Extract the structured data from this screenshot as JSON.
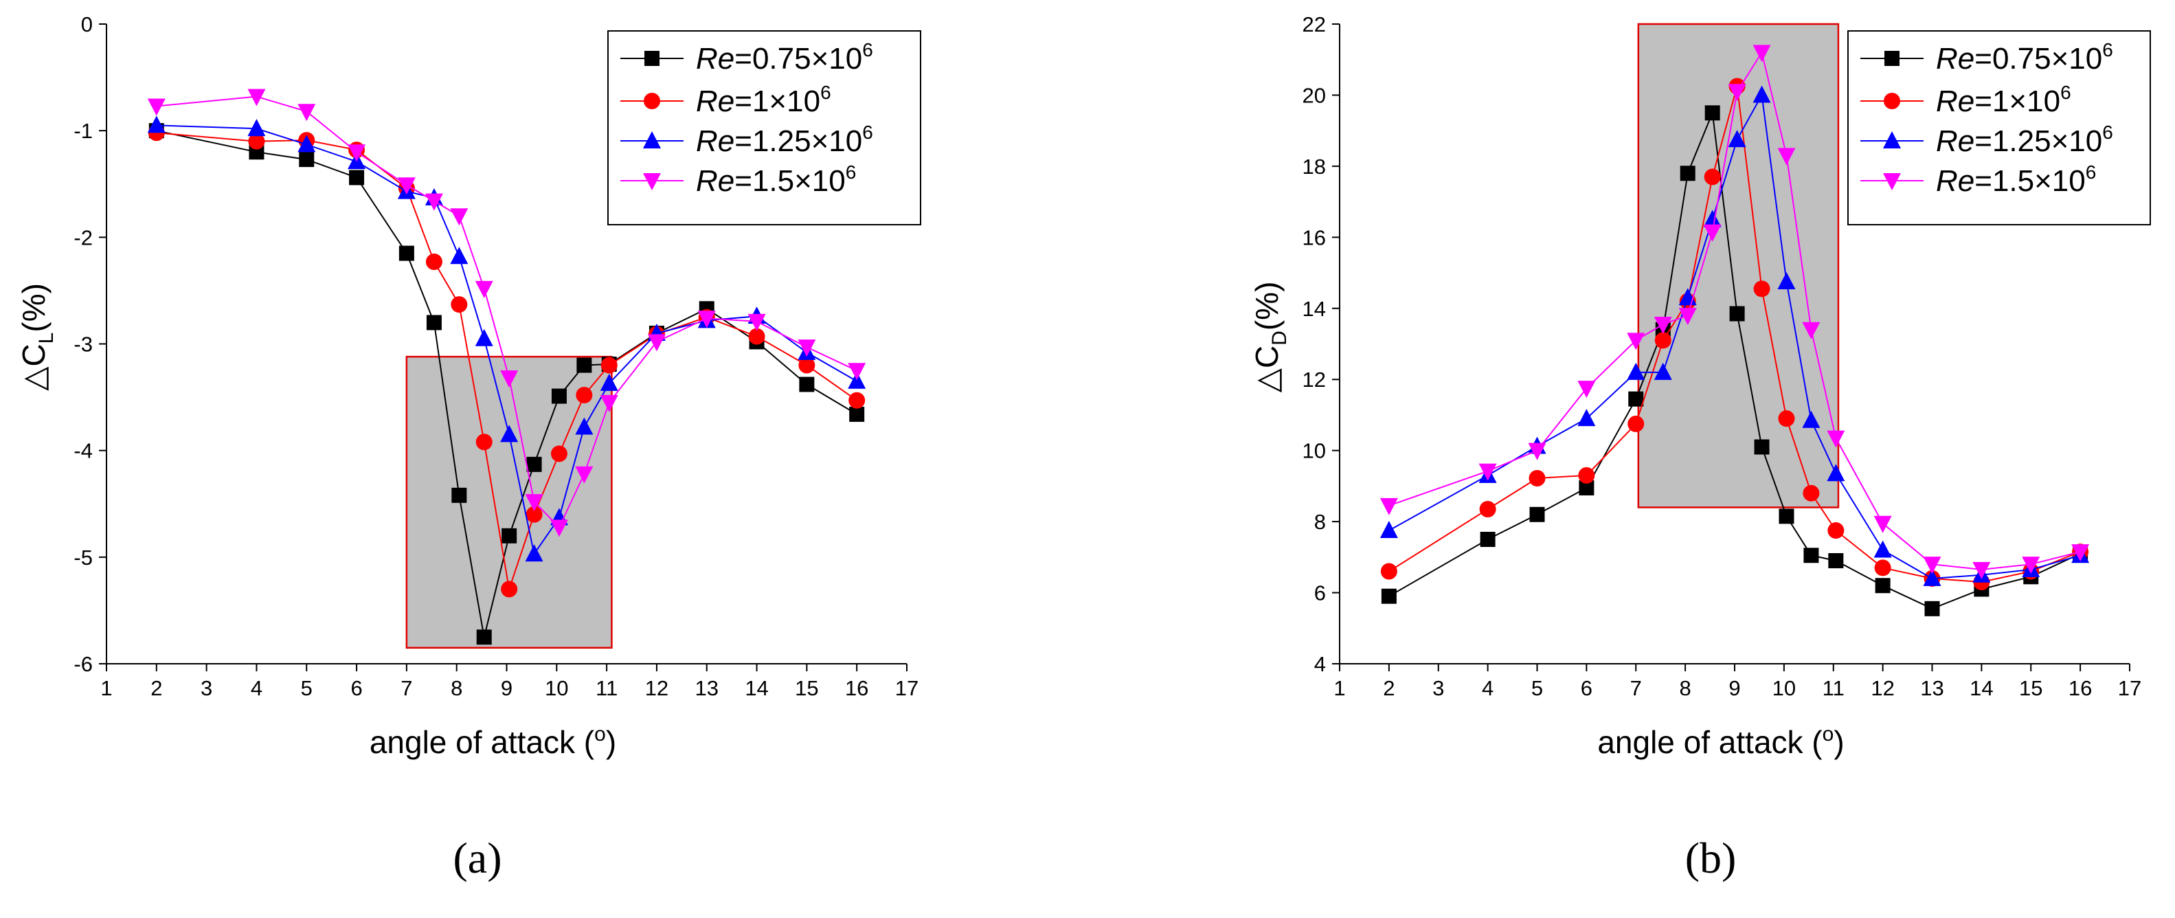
{
  "chart_data": [
    {
      "type": "line",
      "panel": "a",
      "caption": "(a)",
      "xlabel": "angle of attack (",
      "xlabel_sup": "o",
      "xlabel_close": ")",
      "ylabel": "△C",
      "ylabel_sub": "L",
      "ylabel_unit": "(%)",
      "xlim": [
        1,
        17
      ],
      "ylim": [
        -6,
        0
      ],
      "xticks": [
        1,
        2,
        3,
        4,
        5,
        6,
        7,
        8,
        9,
        10,
        11,
        12,
        13,
        14,
        15,
        16,
        17
      ],
      "yticks": [
        -6,
        -5,
        -4,
        -3,
        -2,
        -1,
        0
      ],
      "highlight": {
        "x": [
          7,
          11.1
        ],
        "y": [
          -5.85,
          -3.12
        ]
      },
      "legend_position": "top-right",
      "series": [
        {
          "name": "0.75×10",
          "re_exp": "6",
          "color": "#000000",
          "marker": "square",
          "x": [
            2,
            4,
            5,
            6,
            7,
            7.55,
            8.05,
            8.55,
            9.05,
            9.55,
            10.05,
            10.55,
            11.05,
            12,
            13,
            14,
            15,
            16
          ],
          "y": [
            -1.0,
            -1.2,
            -1.27,
            -1.44,
            -2.15,
            -2.8,
            -4.42,
            -5.75,
            -4.8,
            -4.13,
            -3.49,
            -3.2,
            -3.19,
            -2.9,
            -2.67,
            -2.98,
            -3.38,
            -3.66
          ]
        },
        {
          "name": "1×10",
          "re_exp": "6",
          "color": "#ff0000",
          "marker": "circle",
          "x": [
            2,
            4,
            5,
            6,
            7,
            7.55,
            8.05,
            8.55,
            9.05,
            9.55,
            10.05,
            10.55,
            11.05,
            12,
            13,
            14,
            15,
            16
          ],
          "y": [
            -1.02,
            -1.1,
            -1.09,
            -1.18,
            -1.54,
            -2.23,
            -2.63,
            -3.92,
            -5.3,
            -4.6,
            -4.03,
            -3.48,
            -3.2,
            -2.91,
            -2.75,
            -2.93,
            -3.2,
            -3.53
          ]
        },
        {
          "name": "1.25×10",
          "re_exp": "6",
          "color": "#0000ff",
          "marker": "triangle-up",
          "x": [
            2,
            4,
            5,
            6,
            7,
            7.55,
            8.05,
            8.55,
            9.05,
            9.55,
            10.05,
            10.55,
            11.05,
            12,
            13,
            14,
            15,
            16
          ],
          "y": [
            -0.95,
            -0.98,
            -1.13,
            -1.29,
            -1.57,
            -1.63,
            -2.18,
            -2.95,
            -3.85,
            -4.97,
            -4.63,
            -3.78,
            -3.37,
            -2.9,
            -2.78,
            -2.74,
            -3.08,
            -3.35
          ]
        },
        {
          "name": "1.5×10",
          "re_exp": "6",
          "color": "#ff00ff",
          "marker": "triangle-down",
          "x": [
            2,
            4,
            5,
            6,
            7,
            7.55,
            8.05,
            8.55,
            9.05,
            9.55,
            10.05,
            10.55,
            11.05,
            12,
            13,
            14,
            15,
            16
          ],
          "y": [
            -0.77,
            -0.68,
            -0.82,
            -1.2,
            -1.51,
            -1.66,
            -1.8,
            -2.48,
            -3.32,
            -4.48,
            -4.72,
            -4.22,
            -3.55,
            -2.98,
            -2.76,
            -2.79,
            -3.03,
            -3.25
          ]
        }
      ]
    },
    {
      "type": "line",
      "panel": "b",
      "caption": "(b)",
      "xlabel": "angle of attack (",
      "xlabel_sup": "o",
      "xlabel_close": ")",
      "ylabel": "△C",
      "ylabel_sub": "D",
      "ylabel_unit": "(%)",
      "xlim": [
        1,
        17
      ],
      "ylim": [
        4,
        22
      ],
      "xticks": [
        1,
        2,
        3,
        4,
        5,
        6,
        7,
        8,
        9,
        10,
        11,
        12,
        13,
        14,
        15,
        16,
        17
      ],
      "yticks": [
        4,
        6,
        8,
        10,
        12,
        14,
        16,
        18,
        20,
        22
      ],
      "highlight": {
        "x": [
          7.05,
          11.1
        ],
        "y": [
          8.4,
          22
        ]
      },
      "legend_position": "top-right",
      "series": [
        {
          "name": "0.75×10",
          "re_exp": "6",
          "color": "#000000",
          "marker": "square",
          "x": [
            2,
            4,
            5,
            6,
            7,
            7.55,
            8.05,
            8.55,
            9.05,
            9.55,
            10.05,
            10.55,
            11.05,
            12,
            13,
            14,
            15,
            16
          ],
          "y": [
            5.9,
            7.5,
            8.2,
            8.95,
            11.45,
            13.4,
            17.8,
            19.5,
            13.85,
            10.1,
            8.15,
            7.05,
            6.9,
            6.2,
            5.55,
            6.1,
            6.45,
            7.1
          ]
        },
        {
          "name": "1×10",
          "re_exp": "6",
          "color": "#ff0000",
          "marker": "circle",
          "x": [
            2,
            4,
            5,
            6,
            7,
            7.55,
            8.05,
            8.55,
            9.05,
            9.55,
            10.05,
            10.55,
            11.05,
            12,
            13,
            14,
            15,
            16
          ],
          "y": [
            6.6,
            8.35,
            9.22,
            9.3,
            10.75,
            13.1,
            14.2,
            17.7,
            20.25,
            14.55,
            10.9,
            8.8,
            7.75,
            6.7,
            6.4,
            6.3,
            6.6,
            7.15
          ]
        },
        {
          "name": "1.25×10",
          "re_exp": "6",
          "color": "#0000ff",
          "marker": "triangle-up",
          "x": [
            2,
            4,
            5,
            6,
            7,
            7.55,
            8.05,
            8.55,
            9.05,
            9.55,
            10.05,
            10.55,
            11.05,
            12,
            13,
            14,
            15,
            16
          ],
          "y": [
            7.75,
            9.3,
            10.12,
            10.9,
            12.2,
            12.2,
            14.3,
            16.5,
            18.75,
            20.0,
            14.75,
            10.85,
            9.35,
            7.2,
            6.4,
            6.5,
            6.65,
            7.05
          ]
        },
        {
          "name": "1.5×10",
          "re_exp": "6",
          "color": "#ff00ff",
          "marker": "triangle-down",
          "x": [
            2,
            4,
            5,
            6,
            7,
            7.55,
            8.05,
            8.55,
            9.05,
            9.55,
            10.05,
            10.55,
            11.05,
            12,
            13,
            14,
            15,
            16
          ],
          "y": [
            8.45,
            9.42,
            10.0,
            11.75,
            13.1,
            13.55,
            13.8,
            16.15,
            20.1,
            21.2,
            18.3,
            13.4,
            10.35,
            7.95,
            6.8,
            6.65,
            6.8,
            7.15
          ]
        }
      ]
    }
  ],
  "legend_prefix": "Re",
  "legend_equals": "="
}
